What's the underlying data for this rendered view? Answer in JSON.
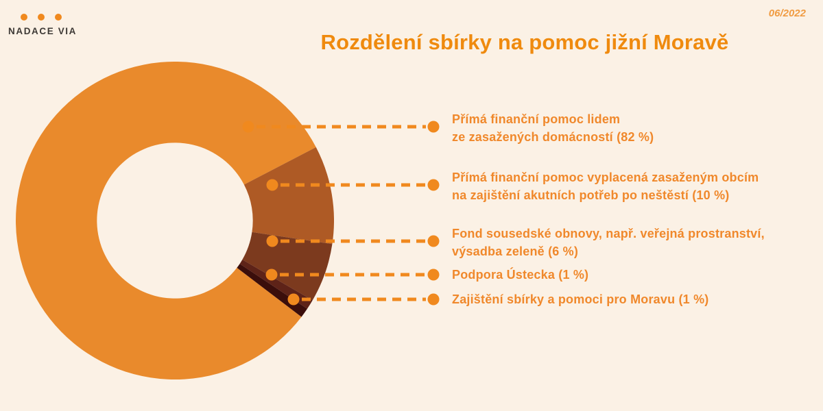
{
  "meta": {
    "date": "06/2022"
  },
  "logo": {
    "text": "NADACE VIA"
  },
  "title": {
    "text": "Rozdělení sbírky na pomoc jižní Moravě"
  },
  "theme": {
    "background": "#FBF1E5",
    "accent": "#F0891E",
    "label_color": "#F0882B",
    "title_color": "#EF8A0E",
    "date_color": "#F09B41",
    "logo_text_color": "#3D3935"
  },
  "chart_data": {
    "type": "pie",
    "subtype": "donut",
    "title": "Rozdělení sbírky na pomoc jižní Moravě",
    "unit": "%",
    "legend_position": "right",
    "start_angle_deg": 37.3,
    "inner_radius_ratio": 0.49,
    "segments": [
      {
        "label": "Přímá finanční pomoc lidem ze zasažených domácností",
        "value": 82,
        "color": "#E98A2C"
      },
      {
        "label": "Přímá finanční pomoc vyplacená zasaženým obcím na zajištění akutních potřeb po neštěstí",
        "value": 10,
        "color": "#AE5A25"
      },
      {
        "label": "Fond sousedské obnovy, např. veřejná prostranství, výsadba zeleně",
        "value": 6,
        "color": "#7C3A1E"
      },
      {
        "label": "Podpora Ústecka",
        "value": 1,
        "color": "#5E2318"
      },
      {
        "label": "Zajištění sbírky a pomoci pro Moravu",
        "value": 1,
        "color": "#3B0E0B"
      }
    ]
  },
  "legend": {
    "items": [
      {
        "line1": "Přímá finanční pomoc lidem",
        "line2": "ze zasažených domácností (82 %)"
      },
      {
        "line1": "Přímá finanční pomoc vyplacená zasaženým obcím",
        "line2": "na zajištění akutních potřeb po neštěstí (10 %)"
      },
      {
        "line1": "Fond sousedské obnovy, např. veřejná prostranství,",
        "line2": "výsadba zeleně (6 %)"
      },
      {
        "line1": "Podpora Ústecka (1 %)"
      },
      {
        "line1": "Zajištění sbírky a pomoci pro Moravu (1 %)"
      }
    ]
  }
}
